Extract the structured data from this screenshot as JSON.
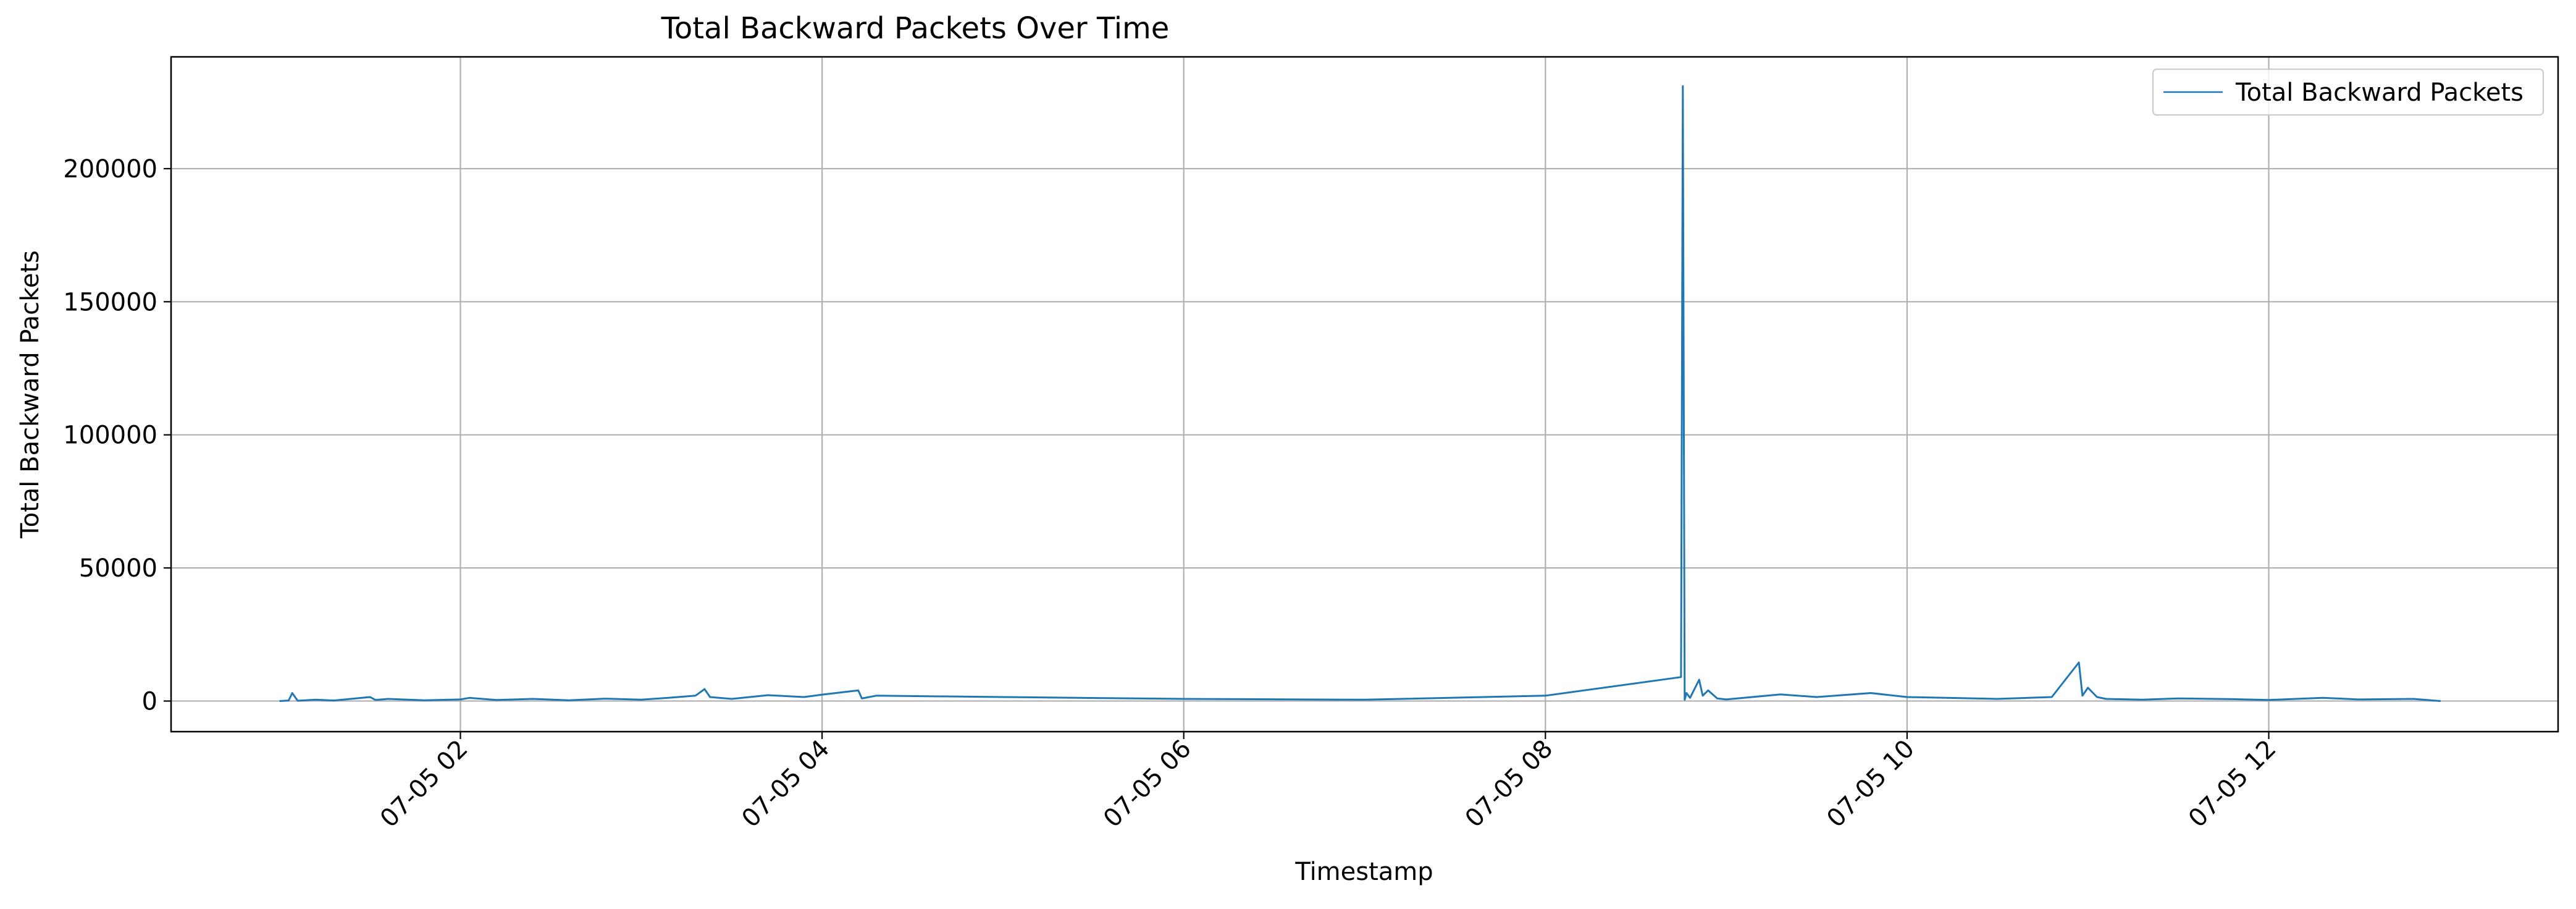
{
  "chart_data": {
    "type": "line",
    "title": "Total Backward Packets Over Time",
    "xlabel": "Timestamp",
    "ylabel": "Total Backward Packets",
    "x_tick_labels": [
      "07-05 02",
      "07-05 04",
      "07-05 06",
      "07-05 08",
      "07-05 10",
      "07-05 12"
    ],
    "x_ticks_hours": [
      2,
      4,
      6,
      8,
      10,
      12
    ],
    "xlim_hours": [
      0.4,
      13.6
    ],
    "y_ticks": [
      0,
      50000,
      100000,
      150000,
      200000
    ],
    "ylim": [
      -11500,
      242000
    ],
    "grid": true,
    "legend": {
      "position": "upper-right"
    },
    "colors": {
      "series": "#1f77b4",
      "grid": "#b0b0b0",
      "axes": "#000000"
    },
    "series": [
      {
        "name": "Total Backward Packets",
        "x_hours": [
          1.0,
          1.05,
          1.07,
          1.1,
          1.2,
          1.3,
          1.5,
          1.53,
          1.6,
          1.8,
          2.0,
          2.05,
          2.2,
          2.4,
          2.6,
          2.8,
          3.0,
          3.15,
          3.3,
          3.35,
          3.38,
          3.5,
          3.7,
          3.9,
          4.0,
          4.2,
          4.22,
          4.3,
          5.0,
          6.0,
          7.0,
          8.0,
          8.75,
          8.76,
          8.77,
          8.78,
          8.8,
          8.85,
          8.87,
          8.9,
          8.95,
          9.0,
          9.3,
          9.5,
          9.8,
          10.0,
          10.5,
          10.8,
          10.95,
          10.97,
          11.0,
          11.05,
          11.1,
          11.3,
          11.5,
          11.8,
          12.0,
          12.3,
          12.5,
          12.8,
          12.95
        ],
        "values": [
          0,
          200,
          3000,
          100,
          500,
          200,
          1500,
          400,
          800,
          300,
          600,
          1200,
          400,
          800,
          300,
          900,
          500,
          1200,
          2000,
          4500,
          1500,
          800,
          2200,
          1500,
          2400,
          4000,
          1000,
          2000,
          1500,
          800,
          500,
          2000,
          9000,
          231000,
          500,
          3000,
          1200,
          8000,
          2000,
          4000,
          1000,
          600,
          2500,
          1500,
          3000,
          1500,
          800,
          1500,
          14500,
          2000,
          5000,
          1500,
          800,
          500,
          1000,
          700,
          400,
          1200,
          600,
          800,
          0
        ]
      }
    ]
  }
}
